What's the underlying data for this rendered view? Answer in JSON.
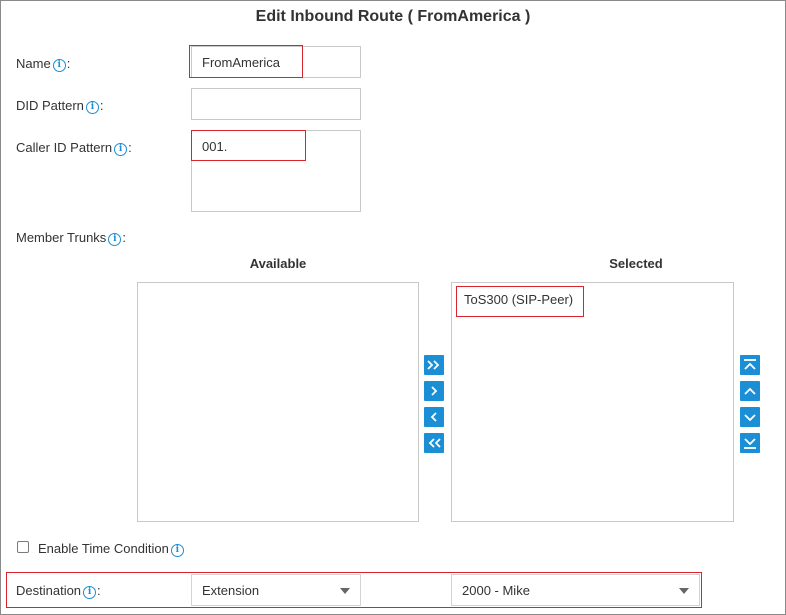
{
  "title": "Edit Inbound Route ( FromAmerica )",
  "form": {
    "name": {
      "label": "Name",
      "suffix": ":",
      "value": "FromAmerica"
    },
    "did_pattern": {
      "label": "DID Pattern",
      "suffix": ":",
      "value": ""
    },
    "caller_id_pattern": {
      "label": "Caller ID Pattern",
      "suffix": ":",
      "value": "001."
    },
    "member_trunks": {
      "label": "Member Trunks",
      "suffix": ":"
    },
    "available_header": "Available",
    "selected_header": "Selected",
    "available_items": [],
    "selected_items": [
      "ToS300 (SIP-Peer)"
    ],
    "time_condition": {
      "label": "Enable Time Condition",
      "checked": false
    },
    "destination": {
      "label": "Destination",
      "suffix": ":",
      "type": "Extension",
      "target": "2000 - Mike"
    }
  },
  "colors": {
    "accent": "#1a8fd6",
    "highlight": "#d9232d"
  },
  "icons": {
    "info": "info-icon",
    "move_all_right": "double-chevron-right-icon",
    "move_right": "chevron-right-icon",
    "move_left": "chevron-left-icon",
    "move_all_left": "double-chevron-left-icon",
    "move_top": "move-to-top-icon",
    "move_up": "chevron-up-icon",
    "move_down": "chevron-down-icon",
    "move_bottom": "move-to-bottom-icon"
  }
}
